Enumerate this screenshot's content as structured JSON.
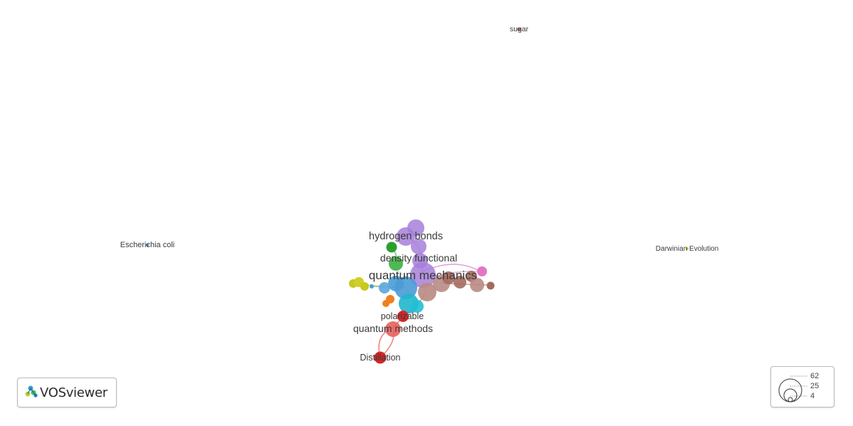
{
  "app": {
    "logo_text": "VOSviewer",
    "logo_icon": "vosviewer-logo-icon"
  },
  "network": {
    "labels": {
      "sugar": "sugar",
      "escherichia_coli": "Escherichia coli",
      "darwinian_evolution": "Darwinian Evolution",
      "hydrogen_bonds": "hydrogen bonds",
      "density_functional": "density functional",
      "quantum_mechanics": "quantum mechanics",
      "polarizable": "polarizable",
      "quantum_methods": "quantum methods",
      "distillation": "Distillation"
    },
    "cluster_colors": {
      "red": "#d62728",
      "light_red": "#e8605c",
      "green": "#2ca02c",
      "blue": "#4a9bd6",
      "yellow": "#c8c81e",
      "purple": "#a67fd9",
      "orange": "#f07f1e",
      "brown": "#a56a5e",
      "cyan": "#1fb7cc",
      "pink": "#e377c2"
    }
  },
  "size_legend": {
    "values": [
      "62",
      "25",
      "4"
    ]
  }
}
